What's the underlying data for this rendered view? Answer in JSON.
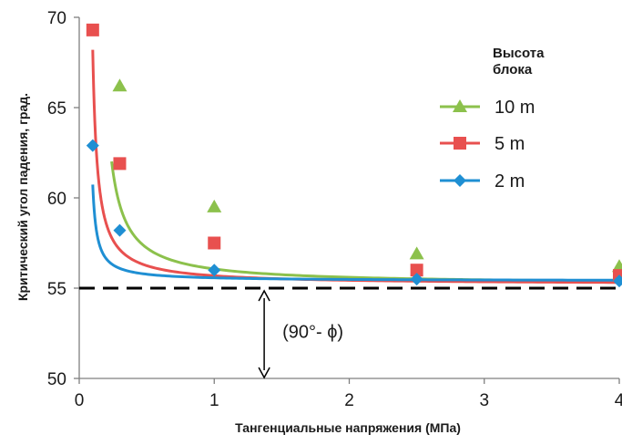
{
  "chart_data": {
    "type": "line",
    "xlabel": "Тангенциальные напряжения (МПа)",
    "ylabel": "Критический угол падения, град.",
    "xlim": [
      0,
      4
    ],
    "ylim": [
      50,
      70
    ],
    "x_ticks": [
      "0",
      "1",
      "2",
      "3",
      "4"
    ],
    "y_ticks": [
      "50",
      "55",
      "60",
      "65",
      "70"
    ],
    "grid": false,
    "legend": {
      "title": "Высота блока",
      "placement": "top-right",
      "entries": [
        "10 m",
        "5 m",
        "2 m"
      ]
    },
    "series": [
      {
        "name": "10 m",
        "color": "#8cc14c",
        "marker": "triangle",
        "points": [
          [
            0.3,
            66.2
          ],
          [
            1.0,
            59.5
          ],
          [
            2.5,
            56.9
          ],
          [
            4.0,
            56.2
          ]
        ],
        "fit": {
          "y_inf": 55.2,
          "a": 0.75,
          "x0": 0.13,
          "x_start": 0.24
        }
      },
      {
        "name": "5 m",
        "color": "#e8504f",
        "marker": "square",
        "points": [
          [
            0.1,
            69.3
          ],
          [
            0.3,
            61.9
          ],
          [
            1.0,
            57.5
          ],
          [
            2.5,
            56.0
          ],
          [
            4.0,
            55.7
          ]
        ],
        "fit": {
          "y_inf": 55.2,
          "a": 0.455,
          "x0": 0.065,
          "x_start": 0.1
        }
      },
      {
        "name": "2 m",
        "color": "#1f8fd3",
        "marker": "diamond",
        "points": [
          [
            0.1,
            62.9
          ],
          [
            0.3,
            58.2
          ],
          [
            1.0,
            56.0
          ],
          [
            2.5,
            55.5
          ],
          [
            4.0,
            55.4
          ]
        ],
        "fit": {
          "y_inf": 55.4,
          "a": 0.16,
          "x0": 0.07,
          "x_start": 0.1
        }
      }
    ],
    "reference_line": {
      "y": 55,
      "style": "dashed",
      "color": "#000000"
    },
    "annotation": {
      "text": "(90°- ϕ)",
      "x": 1.37,
      "y_from": 50,
      "y_to": 55
    }
  }
}
